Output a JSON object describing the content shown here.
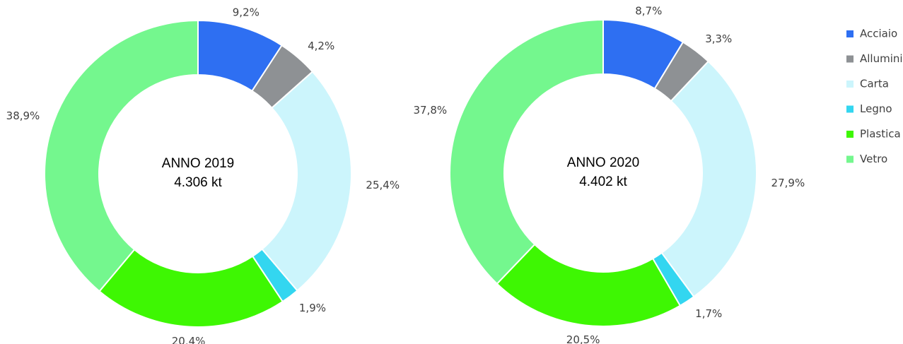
{
  "chart_data": [
    {
      "type": "pie",
      "title": "ANNO 2019",
      "subtitle": "4.306 kt",
      "categories": [
        "Acciaio",
        "Alluminio",
        "Carta",
        "Legno",
        "Plastica",
        "Vetro"
      ],
      "values": [
        9.2,
        4.2,
        25.4,
        1.9,
        20.4,
        38.9
      ],
      "value_labels": [
        "9,2%",
        "4,2%",
        "25,4%",
        "1,9%",
        "20,4%",
        "38,9%"
      ],
      "colors": [
        "#2e6ff2",
        "#8e9194",
        "#ccf5fc",
        "#33d6f0",
        "#3ef703",
        "#74f78e"
      ]
    },
    {
      "type": "pie",
      "title": "ANNO 2020",
      "subtitle": "4.402 kt",
      "categories": [
        "Acciaio",
        "Alluminio",
        "Carta",
        "Legno",
        "Plastica",
        "Vetro"
      ],
      "values": [
        8.7,
        3.3,
        27.9,
        1.7,
        20.5,
        37.8
      ],
      "value_labels": [
        "8,7%",
        "3,3%",
        "27,9%",
        "1,7%",
        "20,5%",
        "37,8%"
      ],
      "colors": [
        "#2e6ff2",
        "#8e9194",
        "#ccf5fc",
        "#33d6f0",
        "#3ef703",
        "#74f78e"
      ]
    }
  ]
}
